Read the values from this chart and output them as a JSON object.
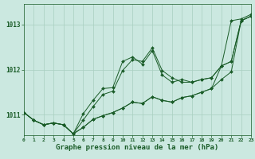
{
  "bg_color": "#cbe8e0",
  "grid_color": "#a8cfc0",
  "line_color": "#1a5c28",
  "marker_color": "#1a5c28",
  "xlabel": "Graphe pression niveau de la mer (hPa)",
  "ylabel_ticks": [
    1011,
    1012,
    1013
  ],
  "xlim": [
    0,
    23
  ],
  "ylim": [
    1010.55,
    1013.45
  ],
  "hours": [
    0,
    1,
    2,
    3,
    4,
    5,
    6,
    7,
    8,
    9,
    10,
    11,
    12,
    13,
    14,
    15,
    16,
    17,
    18,
    19,
    20,
    21,
    22,
    23
  ],
  "series": [
    [
      1011.05,
      1010.88,
      1010.78,
      1010.82,
      1010.78,
      1010.58,
      1010.72,
      1010.9,
      1010.98,
      1011.05,
      1011.15,
      1011.28,
      1011.25,
      1011.4,
      1011.32,
      1011.28,
      1011.38,
      1011.42,
      1011.5,
      1011.58,
      1011.78,
      1011.95,
      1013.08,
      1013.18
    ],
    [
      1011.05,
      1010.88,
      1010.78,
      1010.82,
      1010.78,
      1010.58,
      1011.02,
      1011.32,
      1011.58,
      1011.6,
      1012.18,
      1012.28,
      1012.12,
      1012.42,
      1011.88,
      1011.72,
      1011.78,
      1011.72,
      1011.78,
      1011.82,
      1012.08,
      1012.18,
      1013.08,
      1013.18
    ],
    [
      1011.05,
      1010.88,
      1010.78,
      1010.82,
      1010.78,
      1010.58,
      1010.88,
      1011.18,
      1011.45,
      1011.52,
      1011.98,
      1012.22,
      1012.18,
      1012.48,
      1011.98,
      1011.82,
      1011.72,
      1011.72,
      1011.78,
      1011.82,
      1012.08,
      1012.18,
      1013.08,
      1013.18
    ],
    [
      1011.05,
      1010.88,
      1010.78,
      1010.82,
      1010.78,
      1010.58,
      1010.72,
      1010.9,
      1010.98,
      1011.05,
      1011.15,
      1011.28,
      1011.25,
      1011.4,
      1011.32,
      1011.28,
      1011.38,
      1011.42,
      1011.5,
      1011.58,
      1012.08,
      1013.08,
      1013.12,
      1013.22
    ]
  ]
}
